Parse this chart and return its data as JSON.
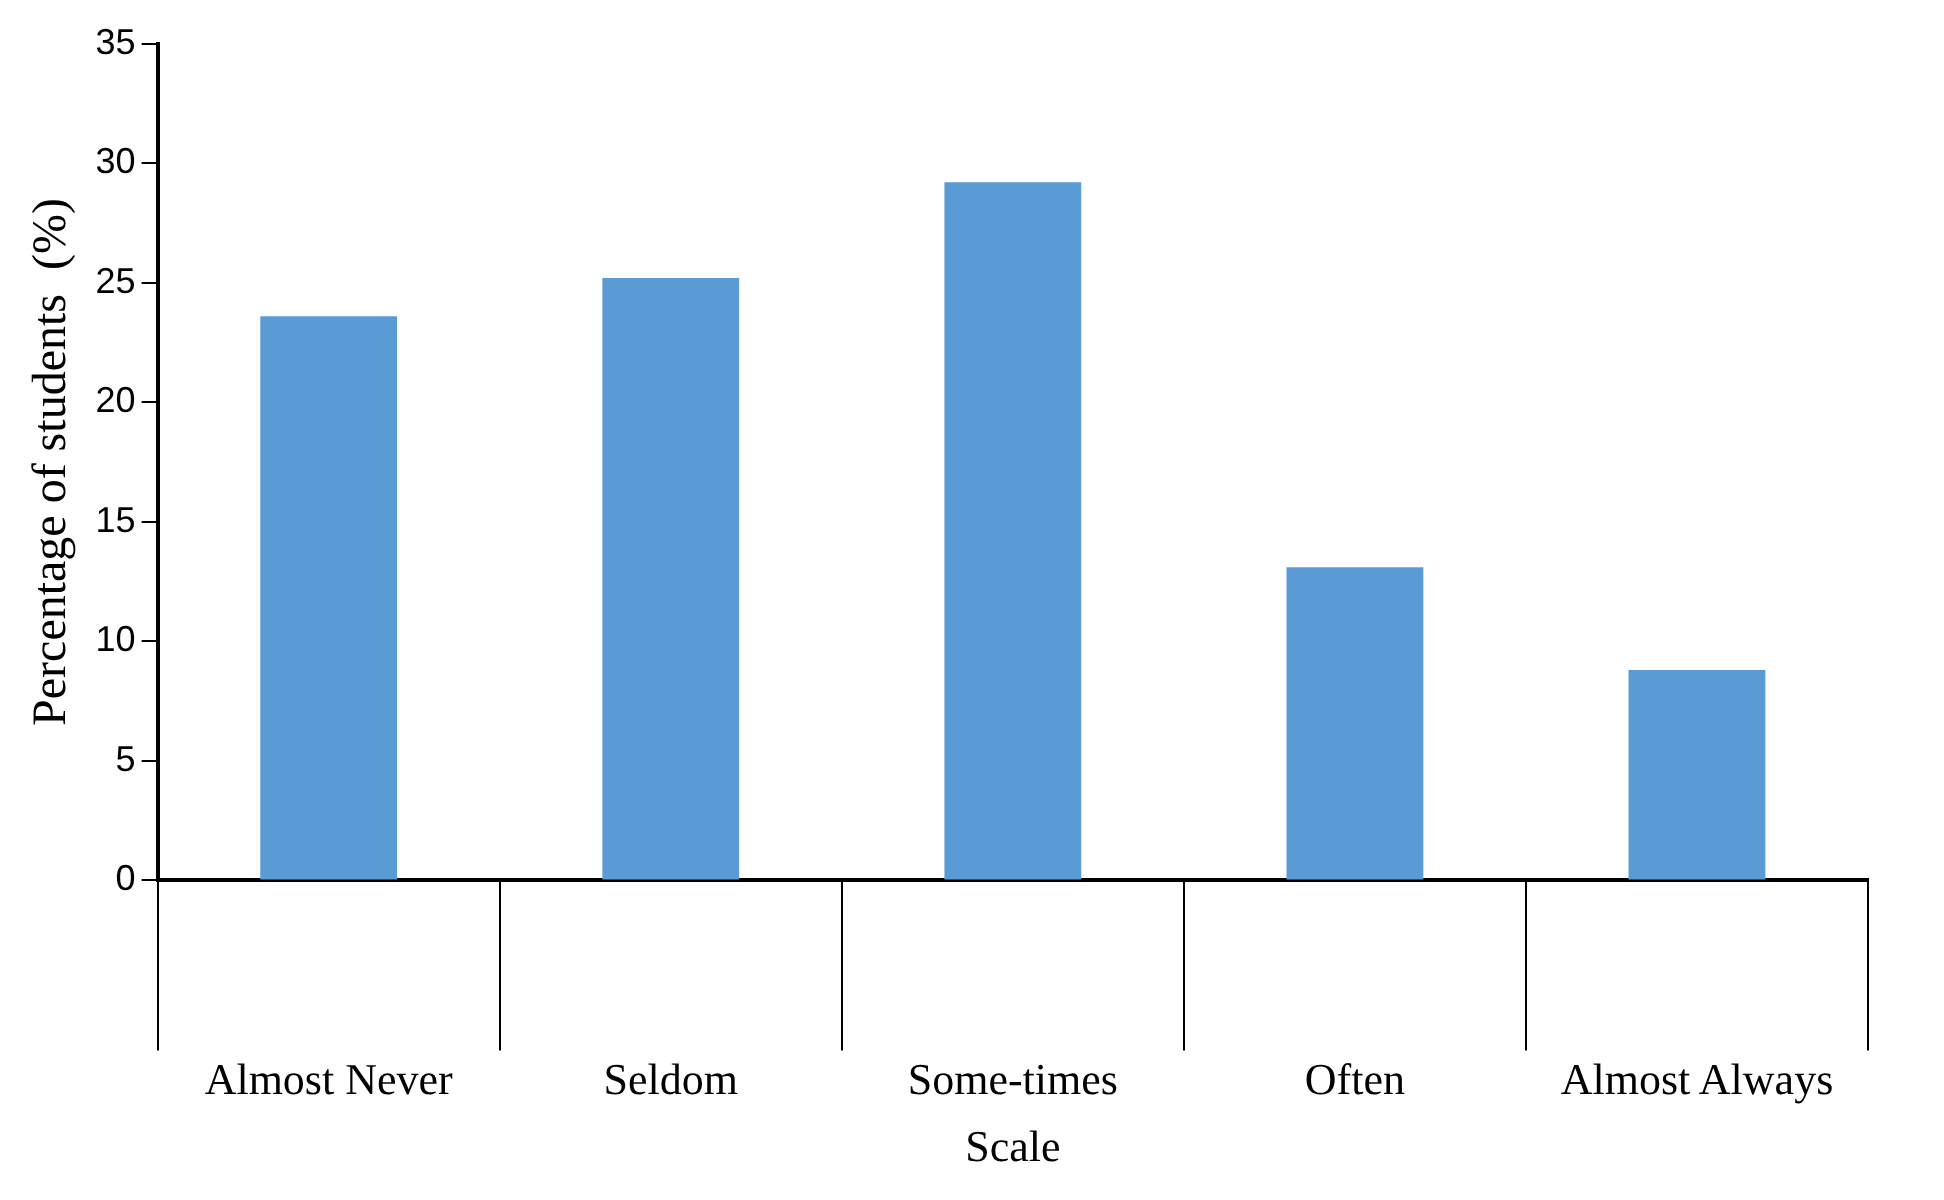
{
  "chart_data": {
    "type": "bar",
    "xlabel": "Scale",
    "ylabel": "Percentage of students  (%)",
    "categories": [
      "Almost Never",
      "Seldom",
      "Some-times",
      "Often",
      "Almost Always"
    ],
    "values": [
      23.6,
      25.2,
      29.2,
      13.1,
      8.8
    ],
    "color": "#5b9bd5",
    "ylim": [
      0,
      35
    ],
    "yticks": [
      0,
      5,
      10,
      15,
      20,
      25,
      30,
      35
    ],
    "grid": false,
    "legend": false
  }
}
